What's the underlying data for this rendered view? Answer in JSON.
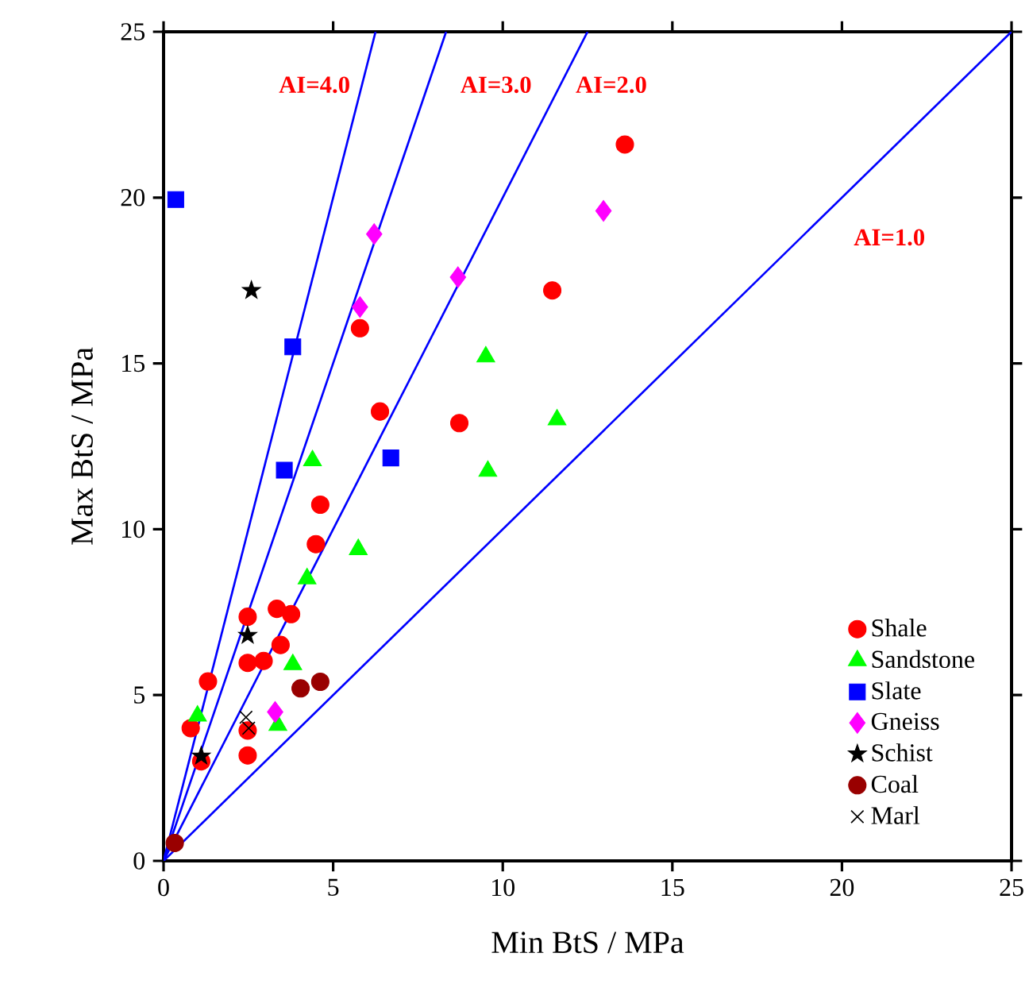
{
  "chart_data": {
    "type": "scatter",
    "xlabel": "Min BtS / MPa",
    "ylabel": "Max BtS / MPa",
    "xlim": [
      0,
      25
    ],
    "ylim": [
      0,
      25
    ],
    "xticks": [
      0,
      5,
      10,
      15,
      20,
      25
    ],
    "yticks": [
      0,
      5,
      10,
      15,
      20,
      25
    ],
    "grid": false,
    "legend": "bottom right",
    "series": [
      {
        "name": "Shale",
        "color": "#ff0000",
        "marker": "circle",
        "x": [
          13.6,
          11.46,
          5.79,
          6.38,
          8.72,
          4.62,
          4.49,
          2.48,
          3.34,
          3.76,
          3.45,
          2.48,
          2.95,
          1.31,
          0.8,
          2.48,
          1.11,
          2.48
        ],
        "values": [
          21.6,
          17.2,
          16.06,
          13.55,
          13.2,
          10.74,
          9.55,
          7.36,
          7.6,
          7.44,
          6.51,
          5.97,
          6.03,
          5.41,
          4.0,
          3.93,
          3.0,
          3.18
        ]
      },
      {
        "name": "Sandstone",
        "color": "#00ff00",
        "marker": "triangle",
        "x": [
          9.5,
          11.6,
          9.56,
          4.39,
          5.74,
          4.23,
          3.81,
          1.0,
          3.37
        ],
        "values": [
          15.2,
          13.3,
          11.75,
          12.07,
          9.39,
          8.51,
          5.92,
          4.37,
          4.09
        ]
      },
      {
        "name": "Slate",
        "color": "#0000ff",
        "marker": "square",
        "x": [
          0.36,
          3.81,
          3.56,
          6.7
        ],
        "values": [
          19.94,
          15.5,
          11.78,
          12.15
        ]
      },
      {
        "name": "Gneiss",
        "color": "#ff00ff",
        "marker": "diamond",
        "x": [
          12.97,
          6.21,
          8.68,
          5.79,
          3.29
        ],
        "values": [
          19.6,
          18.9,
          17.6,
          16.7,
          4.49
        ]
      },
      {
        "name": "Schist",
        "color": "#000000",
        "marker": "star",
        "x": [
          2.59,
          2.48,
          1.11
        ],
        "values": [
          17.2,
          6.8,
          3.16
        ]
      },
      {
        "name": "Coal",
        "color": "#990000",
        "marker": "circle",
        "x": [
          4.04,
          4.62,
          0.33
        ],
        "values": [
          5.2,
          5.4,
          0.54
        ]
      },
      {
        "name": "Marl",
        "color": "#000000",
        "marker": "cross",
        "x": [
          2.43,
          2.51
        ],
        "values": [
          4.33,
          4.0
        ]
      },
      {
        "type": "line",
        "color": "#0000ff",
        "marker": "none",
        "line_style": "solid",
        "x": [
          0,
          6.25
        ],
        "values": [
          0,
          25
        ]
      },
      {
        "type": "line",
        "color": "#0000ff",
        "marker": "none",
        "line_style": "solid",
        "x": [
          0,
          8.33
        ],
        "values": [
          0,
          25
        ]
      },
      {
        "type": "line",
        "color": "#0000ff",
        "marker": "none",
        "line_style": "solid",
        "x": [
          0,
          12.5
        ],
        "values": [
          0,
          25
        ]
      },
      {
        "type": "line",
        "color": "#0000ff",
        "marker": "none",
        "line_style": "solid",
        "x": [
          0,
          25
        ],
        "values": [
          0,
          25
        ]
      }
    ],
    "annotations": [
      "AI=4.0",
      "AI=3.0",
      "AI=2.0",
      "AI=1.0"
    ]
  }
}
